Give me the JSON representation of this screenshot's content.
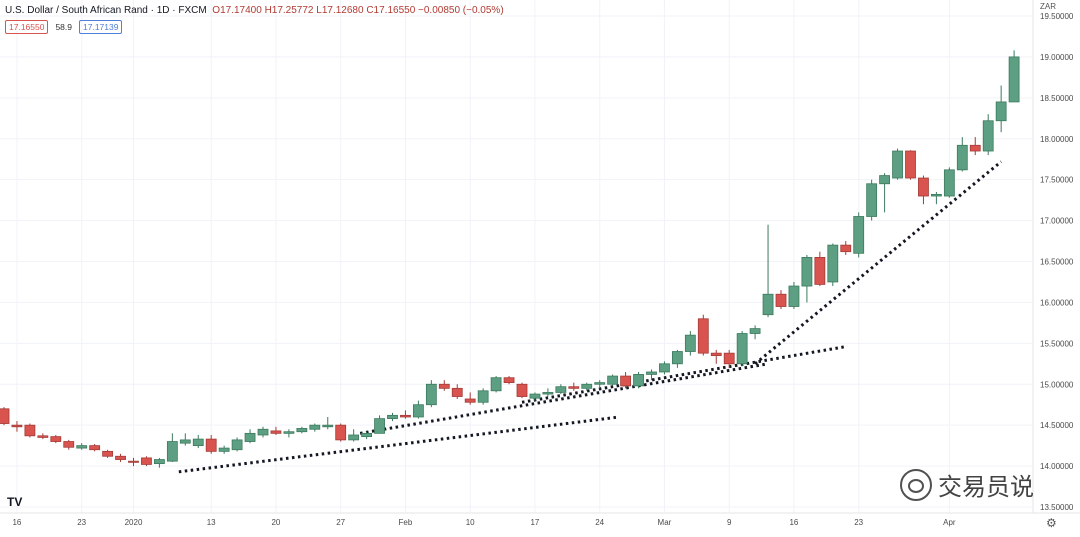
{
  "header": {
    "symbol_title": "U.S. Dollar / South African Rand · 1D · FXCM",
    "ohlc": "O17.17400 H17.25772 L17.12680 C17.16550 −0.00850 (−0.05%)",
    "bid": "17.16550",
    "spread": "58.9",
    "ask": "17.17139"
  },
  "currency_label": "ZAR",
  "watermark_text": "交易员说",
  "logo_text": "TV",
  "settings_icon": "gear-icon",
  "colors": {
    "up": "#5d9f82",
    "down": "#d9534f",
    "grid": "#f0f3fa",
    "axis_text": "#4a4a4a",
    "trendline": "#131722"
  },
  "chart_data": {
    "type": "candlestick",
    "title": "U.S. Dollar / South African Rand · 1D · FXCM",
    "ylim": [
      13.5,
      19.5
    ],
    "y_ticks": [
      "13.50000",
      "14.00000",
      "14.50000",
      "15.00000",
      "15.50000",
      "16.00000",
      "16.50000",
      "17.00000",
      "17.50000",
      "18.00000",
      "18.50000",
      "19.00000",
      "19.50000"
    ],
    "x_ticks": [
      {
        "label": "16",
        "index": 1
      },
      {
        "label": "23",
        "index": 6
      },
      {
        "label": "2020",
        "index": 10
      },
      {
        "label": "13",
        "index": 16
      },
      {
        "label": "20",
        "index": 21
      },
      {
        "label": "27",
        "index": 26
      },
      {
        "label": "Feb",
        "index": 31
      },
      {
        "label": "10",
        "index": 36
      },
      {
        "label": "17",
        "index": 41
      },
      {
        "label": "24",
        "index": 46
      },
      {
        "label": "Mar",
        "index": 51
      },
      {
        "label": "9",
        "index": 56
      },
      {
        "label": "16",
        "index": 61
      },
      {
        "label": "23",
        "index": 66
      },
      {
        "label": "Apr",
        "index": 73
      }
    ],
    "candles": [
      [
        14.7,
        14.72,
        14.5,
        14.52
      ],
      [
        14.5,
        14.55,
        14.42,
        14.48
      ],
      [
        14.5,
        14.52,
        14.35,
        14.37
      ],
      [
        14.37,
        14.4,
        14.33,
        14.35
      ],
      [
        14.36,
        14.38,
        14.28,
        14.3
      ],
      [
        14.3,
        14.32,
        14.2,
        14.23
      ],
      [
        14.22,
        14.28,
        14.2,
        14.25
      ],
      [
        14.25,
        14.27,
        14.18,
        14.2
      ],
      [
        14.18,
        14.2,
        14.1,
        14.12
      ],
      [
        14.12,
        14.15,
        14.05,
        14.08
      ],
      [
        14.06,
        14.1,
        14.0,
        14.05
      ],
      [
        14.1,
        14.12,
        14.0,
        14.02
      ],
      [
        14.03,
        14.1,
        13.98,
        14.08
      ],
      [
        14.06,
        14.4,
        14.05,
        14.3
      ],
      [
        14.28,
        14.4,
        14.25,
        14.32
      ],
      [
        14.25,
        14.38,
        14.22,
        14.33
      ],
      [
        14.33,
        14.38,
        14.15,
        14.18
      ],
      [
        14.18,
        14.25,
        14.15,
        14.22
      ],
      [
        14.2,
        14.35,
        14.18,
        14.32
      ],
      [
        14.3,
        14.45,
        14.28,
        14.4
      ],
      [
        14.38,
        14.48,
        14.35,
        14.45
      ],
      [
        14.43,
        14.48,
        14.38,
        14.4
      ],
      [
        14.4,
        14.45,
        14.35,
        14.42
      ],
      [
        14.42,
        14.48,
        14.4,
        14.46
      ],
      [
        14.45,
        14.52,
        14.42,
        14.5
      ],
      [
        14.48,
        14.6,
        14.45,
        14.5
      ],
      [
        14.5,
        14.52,
        14.3,
        14.32
      ],
      [
        14.32,
        14.45,
        14.3,
        14.38
      ],
      [
        14.36,
        14.42,
        14.33,
        14.4
      ],
      [
        14.4,
        14.62,
        14.4,
        14.58
      ],
      [
        14.58,
        14.65,
        14.55,
        14.62
      ],
      [
        14.62,
        14.68,
        14.58,
        14.6
      ],
      [
        14.6,
        14.8,
        14.58,
        14.75
      ],
      [
        14.75,
        15.05,
        14.72,
        15.0
      ],
      [
        15.0,
        15.05,
        14.92,
        14.95
      ],
      [
        14.95,
        15.0,
        14.82,
        14.85
      ],
      [
        14.82,
        14.9,
        14.75,
        14.78
      ],
      [
        14.78,
        14.95,
        14.75,
        14.92
      ],
      [
        14.92,
        15.1,
        14.9,
        15.08
      ],
      [
        15.08,
        15.1,
        15.0,
        15.02
      ],
      [
        15.0,
        15.02,
        14.83,
        14.85
      ],
      [
        14.83,
        14.9,
        14.8,
        14.88
      ],
      [
        14.88,
        14.95,
        14.85,
        14.9
      ],
      [
        14.9,
        15.0,
        14.88,
        14.97
      ],
      [
        14.97,
        15.02,
        14.92,
        14.95
      ],
      [
        14.95,
        15.02,
        14.92,
        15.0
      ],
      [
        15.0,
        15.05,
        14.95,
        15.02
      ],
      [
        15.0,
        15.12,
        14.98,
        15.1
      ],
      [
        15.1,
        15.15,
        14.95,
        14.98
      ],
      [
        14.98,
        15.15,
        14.95,
        15.12
      ],
      [
        15.12,
        15.18,
        15.05,
        15.15
      ],
      [
        15.15,
        15.28,
        15.12,
        15.25
      ],
      [
        15.25,
        15.42,
        15.2,
        15.4
      ],
      [
        15.4,
        15.65,
        15.35,
        15.6
      ],
      [
        15.8,
        15.85,
        15.35,
        15.38
      ],
      [
        15.38,
        15.42,
        15.25,
        15.35
      ],
      [
        15.38,
        15.42,
        15.2,
        15.25
      ],
      [
        15.25,
        15.65,
        15.22,
        15.62
      ],
      [
        15.62,
        15.72,
        15.55,
        15.68
      ],
      [
        15.85,
        16.95,
        15.82,
        16.1
      ],
      [
        16.1,
        16.15,
        15.92,
        15.95
      ],
      [
        15.95,
        16.25,
        15.92,
        16.2
      ],
      [
        16.2,
        16.58,
        16.0,
        16.55
      ],
      [
        16.55,
        16.62,
        16.2,
        16.22
      ],
      [
        16.25,
        16.72,
        16.2,
        16.7
      ],
      [
        16.7,
        16.75,
        16.58,
        16.62
      ],
      [
        16.6,
        17.1,
        16.55,
        17.05
      ],
      [
        17.05,
        17.5,
        17.0,
        17.45
      ],
      [
        17.45,
        17.58,
        17.1,
        17.55
      ],
      [
        17.52,
        17.88,
        17.5,
        17.85
      ],
      [
        17.85,
        17.86,
        17.5,
        17.52
      ],
      [
        17.52,
        17.55,
        17.2,
        17.3
      ],
      [
        17.3,
        17.35,
        17.2,
        17.32
      ],
      [
        17.3,
        17.65,
        17.28,
        17.62
      ],
      [
        17.62,
        18.02,
        17.6,
        17.92
      ],
      [
        17.92,
        18.02,
        17.8,
        17.85
      ],
      [
        17.85,
        18.3,
        17.8,
        18.22
      ],
      [
        18.22,
        18.65,
        18.08,
        18.45
      ],
      [
        18.45,
        19.08,
        18.45,
        19.0
      ]
    ],
    "trendlines": [
      {
        "x1": 13.5,
        "y1": 13.93,
        "x2": 47.5,
        "y2": 14.6
      },
      {
        "x1": 27.5,
        "y1": 14.4,
        "x2": 59,
        "y2": 15.25
      },
      {
        "x1": 40,
        "y1": 14.78,
        "x2": 65,
        "y2": 15.46
      },
      {
        "x1": 58,
        "y1": 15.25,
        "x2": 77,
        "y2": 17.72
      }
    ]
  }
}
